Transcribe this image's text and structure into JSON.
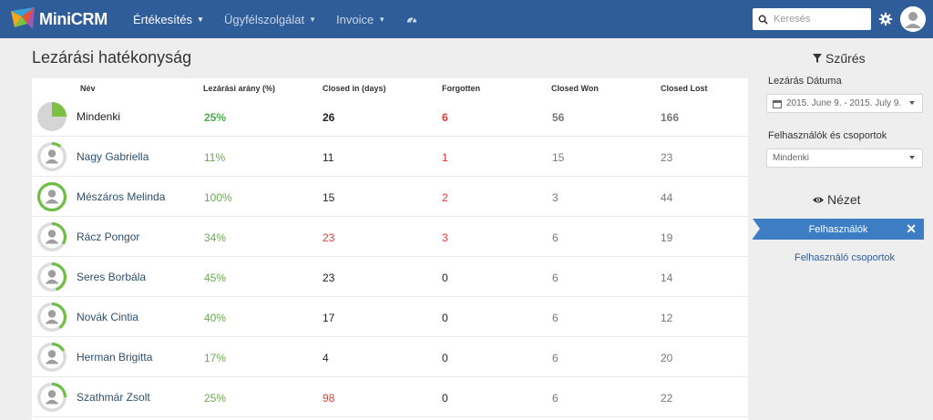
{
  "header": {
    "logo_text": "MiniCRM",
    "nav": [
      {
        "label": "Értékesítés",
        "active": true
      },
      {
        "label": "Ügyfélszolgálat",
        "active": false
      },
      {
        "label": "Invoice",
        "active": false
      }
    ],
    "search_placeholder": "Keresés",
    "icons": [
      "dashboard-icon",
      "search-icon",
      "gear-icon",
      "user-avatar"
    ]
  },
  "main": {
    "title": "Lezárási hatékonyság",
    "columns": [
      "Név",
      "Lezárási arány (%)",
      "Closed in (days)",
      "Forgotten",
      "Closed Won",
      "Closed Lost"
    ],
    "rows": [
      {
        "name": "Mindenki",
        "rate": "25%",
        "rate_fraction": 0.25,
        "closed_in": "26",
        "forgotten": "6",
        "won": "56",
        "lost": "166"
      },
      {
        "name": "Nagy Gabriella",
        "rate": "11%",
        "rate_fraction": 0.11,
        "closed_in": "11",
        "forgotten": "1",
        "won": "15",
        "lost": "23"
      },
      {
        "name": "Mészáros Melinda",
        "rate": "100%",
        "rate_fraction": 1.0,
        "closed_in": "15",
        "forgotten": "2",
        "won": "3",
        "lost": "44"
      },
      {
        "name": "Rácz Pongor",
        "rate": "34%",
        "rate_fraction": 0.34,
        "closed_in": "23",
        "forgotten": "3",
        "won": "6",
        "lost": "19"
      },
      {
        "name": "Seres Borbála",
        "rate": "45%",
        "rate_fraction": 0.45,
        "closed_in": "23",
        "forgotten": "0",
        "won": "6",
        "lost": "14"
      },
      {
        "name": "Novák Cintia",
        "rate": "40%",
        "rate_fraction": 0.4,
        "closed_in": "17",
        "forgotten": "0",
        "won": "6",
        "lost": "12"
      },
      {
        "name": "Herman Brigitta",
        "rate": "17%",
        "rate_fraction": 0.17,
        "closed_in": "4",
        "forgotten": "0",
        "won": "6",
        "lost": "20"
      },
      {
        "name": "Szathmár Zsolt",
        "rate": "25%",
        "rate_fraction": 0.25,
        "closed_in": "98",
        "forgotten": "0",
        "won": "6",
        "lost": "22"
      }
    ]
  },
  "sidebar": {
    "filter_title": "Szűrés",
    "date_label": "Lezárás Dátuma",
    "date_value": "2015. June 9. - 2015. July 9.",
    "users_label": "Felhasználók és csoportok",
    "users_value": "Mindenki",
    "view_title": "Nézet",
    "view_active": "Felhasználók",
    "view_close": "✕",
    "view_other": "Felhasználó csoportok"
  },
  "colors": {
    "header_bg": "#2f5d9a",
    "accent_green": "#6abf40",
    "red": "#e53935",
    "tab_blue": "#3d7dc4"
  }
}
